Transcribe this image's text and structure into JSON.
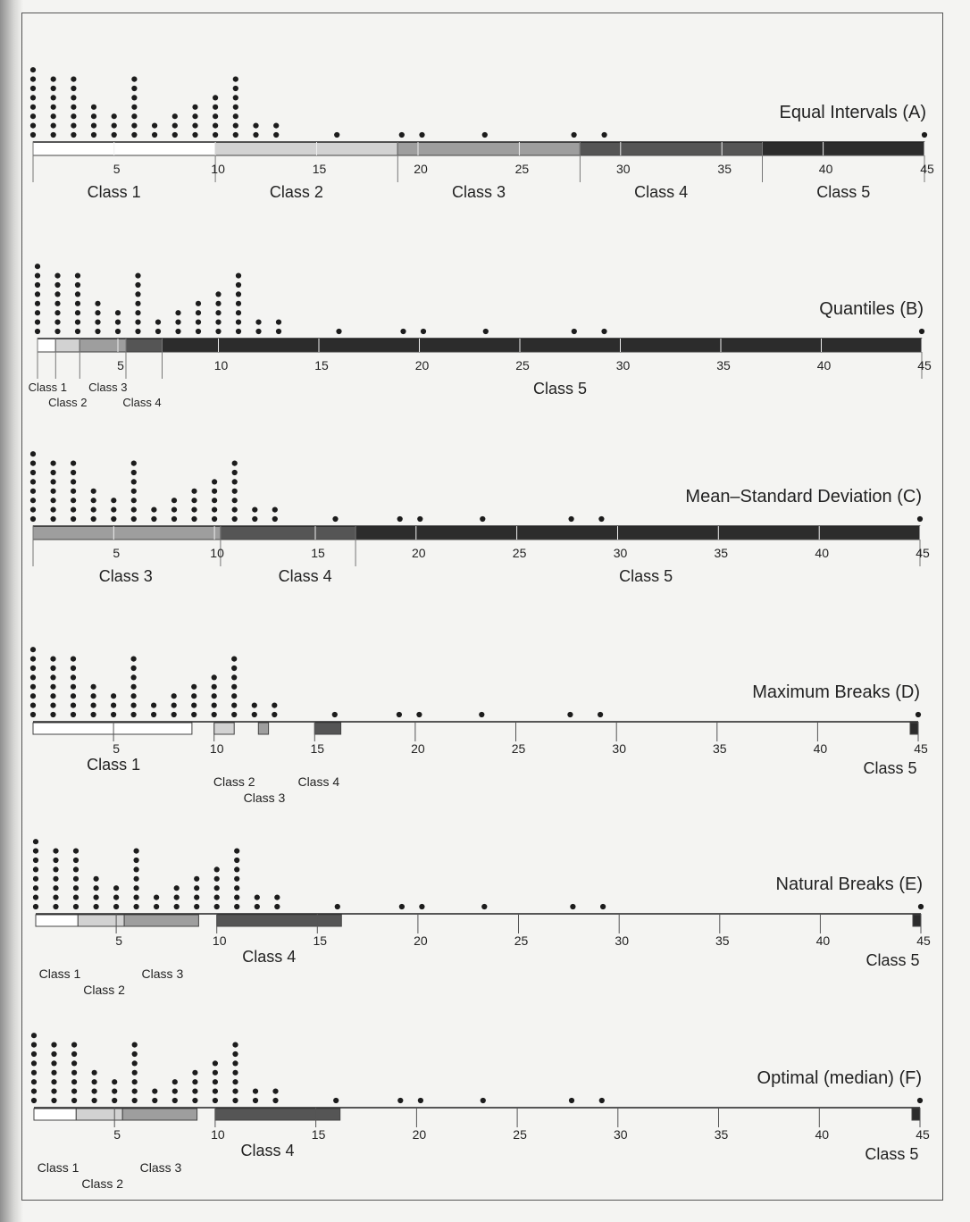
{
  "chart_data": [
    {
      "type": "scatter",
      "title": "Equal Intervals (A)",
      "scale_ticks": [
        5,
        10,
        15,
        20,
        25,
        30,
        35,
        40,
        45
      ],
      "x_range": [
        1,
        45
      ],
      "class_breaks": [
        1,
        10,
        19,
        28,
        37,
        45
      ],
      "class_labels": [
        {
          "text": "Class 1",
          "pos": 5
        },
        {
          "text": "Class 2",
          "pos": 14
        },
        {
          "text": "Class 3",
          "pos": 23
        },
        {
          "text": "Class 4",
          "pos": 32
        },
        {
          "text": "Class 5",
          "pos": 41
        }
      ],
      "class_shades": [
        "#ffffff",
        "#d2d2d2",
        "#9e9e9e",
        "#555555",
        "#2c2c2c"
      ]
    },
    {
      "type": "scatter",
      "title": "Quantiles (B)",
      "scale_ticks": [
        5,
        10,
        15,
        20,
        25,
        30,
        35,
        40,
        45
      ],
      "x_range": [
        1,
        45
      ],
      "class_breaks": [
        1,
        1.9,
        3.1,
        5.4,
        7.2,
        45
      ],
      "class_labels": [
        {
          "text": "Class 1",
          "pos": 1.5,
          "row": 0
        },
        {
          "text": "Class 2",
          "pos": 2.5,
          "row": 1
        },
        {
          "text": "Class 3",
          "pos": 4.5,
          "row": 0
        },
        {
          "text": "Class 4",
          "pos": 6.2,
          "row": 1
        },
        {
          "text": "Class 5",
          "pos": 27
        }
      ],
      "class_shades": [
        "#ffffff",
        "#d2d2d2",
        "#9e9e9e",
        "#555555",
        "#2c2c2c"
      ]
    },
    {
      "type": "scatter",
      "title": "Mean–Standard Deviation (C)",
      "scale_ticks": [
        5,
        10,
        15,
        20,
        25,
        30,
        35,
        40,
        45
      ],
      "x_range": [
        1,
        45
      ],
      "class_breaks": [
        1,
        10.3,
        17,
        45
      ],
      "class_labels": [
        {
          "text": "Class 3",
          "pos": 5.6
        },
        {
          "text": "Class 4",
          "pos": 14.5
        },
        {
          "text": "Class 5",
          "pos": 31.4
        }
      ],
      "class_shades": [
        "#9e9e9e",
        "#555555",
        "#2c2c2c"
      ]
    },
    {
      "type": "scatter",
      "title": "Maximum Breaks (D)",
      "scale_ticks": [
        5,
        10,
        15,
        20,
        25,
        30,
        35,
        40,
        45
      ],
      "x_range": [
        1,
        45
      ],
      "class_ranges": [
        [
          1,
          8.9
        ],
        [
          10,
          11
        ],
        [
          12.2,
          12.7
        ],
        [
          15,
          16.3
        ],
        [
          44.6,
          45
        ]
      ],
      "class_labels": [
        {
          "text": "Class 1",
          "pos": 5,
          "row": 0
        },
        {
          "text": "Class 2",
          "pos": 11,
          "row": 1
        },
        {
          "text": "Class 3",
          "pos": 12.5,
          "row": 2
        },
        {
          "text": "Class 4",
          "pos": 15.2,
          "row": 1
        },
        {
          "text": "Class 5",
          "pos": 43.6,
          "row": 0
        }
      ],
      "class_shades": [
        "#ffffff",
        "#d2d2d2",
        "#9e9e9e",
        "#555555",
        "#2c2c2c"
      ]
    },
    {
      "type": "scatter",
      "title": "Natural Breaks (E)",
      "scale_ticks": [
        5,
        10,
        15,
        20,
        25,
        30,
        35,
        40,
        45
      ],
      "x_range": [
        1,
        45
      ],
      "class_ranges": [
        [
          1,
          3.1
        ],
        [
          3.1,
          5.4
        ],
        [
          5.4,
          9.1
        ],
        [
          10,
          16.2
        ],
        [
          44.6,
          45
        ]
      ],
      "class_labels": [
        {
          "text": "Class 1",
          "pos": 2.2,
          "row": 1
        },
        {
          "text": "Class 2",
          "pos": 4.4,
          "row": 2
        },
        {
          "text": "Class 3",
          "pos": 7.3,
          "row": 1
        },
        {
          "text": "Class 4",
          "pos": 12.6,
          "row": 0
        },
        {
          "text": "Class 5",
          "pos": 43.6,
          "row": 0
        }
      ],
      "class_shades": [
        "#ffffff",
        "#d2d2d2",
        "#9e9e9e",
        "#555555",
        "#2c2c2c"
      ]
    },
    {
      "type": "scatter",
      "title": "Optimal (median) (F)",
      "scale_ticks": [
        5,
        10,
        15,
        20,
        25,
        30,
        35,
        40,
        45
      ],
      "x_range": [
        1,
        45
      ],
      "class_ranges": [
        [
          1,
          3.1
        ],
        [
          3.1,
          5.4
        ],
        [
          5.4,
          9.1
        ],
        [
          10,
          16.2
        ],
        [
          44.6,
          45
        ]
      ],
      "class_labels": [
        {
          "text": "Class 1",
          "pos": 2.2,
          "row": 1
        },
        {
          "text": "Class 2",
          "pos": 4.4,
          "row": 2
        },
        {
          "text": "Class 3",
          "pos": 7.3,
          "row": 1
        },
        {
          "text": "Class 4",
          "pos": 12.6,
          "row": 0
        },
        {
          "text": "Class 5",
          "pos": 43.6,
          "row": 0
        }
      ],
      "class_shades": [
        "#ffffff",
        "#d2d2d2",
        "#9e9e9e",
        "#555555",
        "#2c2c2c"
      ]
    }
  ],
  "dot_columns": [
    {
      "x": 1,
      "count": 8
    },
    {
      "x": 2,
      "count": 7
    },
    {
      "x": 3,
      "count": 7
    },
    {
      "x": 4,
      "count": 4
    },
    {
      "x": 5,
      "count": 3
    },
    {
      "x": 6,
      "count": 7
    },
    {
      "x": 7,
      "count": 2
    },
    {
      "x": 8,
      "count": 3
    },
    {
      "x": 9,
      "count": 4
    },
    {
      "x": 10,
      "count": 5
    },
    {
      "x": 11,
      "count": 7
    },
    {
      "x": 12,
      "count": 2
    },
    {
      "x": 13,
      "count": 2
    },
    {
      "x": 16,
      "count": 1
    },
    {
      "x": 19.2,
      "count": 1
    },
    {
      "x": 20.2,
      "count": 1
    },
    {
      "x": 23.3,
      "count": 1
    },
    {
      "x": 27.7,
      "count": 1
    },
    {
      "x": 29.2,
      "count": 1
    },
    {
      "x": 45,
      "count": 1
    }
  ],
  "dot_color": "#1c1c1c"
}
